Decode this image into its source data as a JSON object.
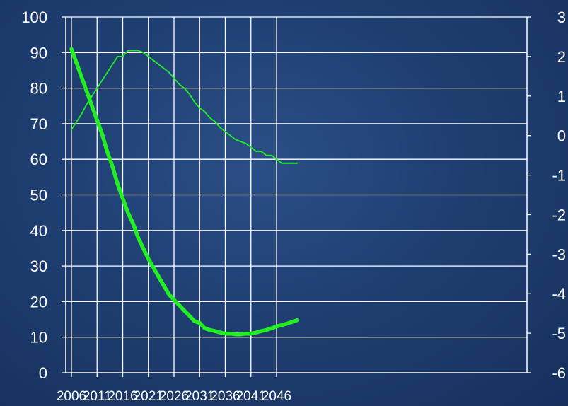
{
  "chart_data": {
    "type": "line",
    "grid": true,
    "colors": {
      "background": "#1f3f72",
      "grid": "#ffffff",
      "axis": "#ffffff",
      "text": "#ffffff",
      "series": "#22ee22"
    },
    "left_axis": {
      "ylim": [
        0,
        100
      ],
      "ticks": [
        "0",
        "10",
        "20",
        "30",
        "40",
        "50",
        "60",
        "70",
        "80",
        "90",
        "100"
      ]
    },
    "right_axis": {
      "ylim": [
        -6,
        3
      ],
      "ticks": [
        "-6",
        "-5",
        "-4",
        "-3",
        "-2",
        "-1",
        "0",
        "1",
        "2",
        "3"
      ]
    },
    "x_ticks": [
      "2006",
      "2011",
      "2016",
      "2021",
      "2026",
      "2031",
      "2036",
      "2041",
      "2046"
    ],
    "x_range": [
      2006,
      2050
    ],
    "series": [
      {
        "axis": "left",
        "style": "thick",
        "x": [
          2006,
          2007,
          2008,
          2009,
          2010,
          2011,
          2012,
          2013,
          2014,
          2015,
          2016,
          2017,
          2018,
          2019,
          2020,
          2021,
          2022,
          2023,
          2024,
          2025,
          2026,
          2027,
          2028,
          2029,
          2030,
          2031,
          2032,
          2033,
          2034,
          2035,
          2036,
          2037,
          2038,
          2039,
          2040,
          2041,
          2042,
          2043,
          2044,
          2045,
          2046,
          2047,
          2048,
          2049,
          2050
        ],
        "values": [
          91,
          87,
          83,
          79,
          75,
          71,
          67,
          62,
          58,
          53,
          49,
          45,
          42,
          38,
          35,
          32,
          29.5,
          27,
          24.5,
          22,
          20.5,
          19,
          17.5,
          16,
          14.5,
          14,
          12.5,
          12,
          11.7,
          11.3,
          11,
          11,
          10.8,
          10.8,
          11,
          11,
          11.3,
          11.7,
          12,
          12.5,
          13,
          13.4,
          13.8,
          14.3,
          14.8
        ]
      },
      {
        "axis": "right",
        "style": "thin",
        "x": [
          2006,
          2007,
          2008,
          2009,
          2010,
          2011,
          2012,
          2013,
          2014,
          2015,
          2016,
          2017,
          2018,
          2019,
          2020,
          2021,
          2022,
          2023,
          2024,
          2025,
          2026,
          2027,
          2028,
          2029,
          2030,
          2031,
          2032,
          2033,
          2034,
          2035,
          2036,
          2037,
          2038,
          2039,
          2040,
          2041,
          2042,
          2043,
          2044,
          2045,
          2046,
          2047,
          2048,
          2049,
          2050
        ],
        "values": [
          0.15,
          0.35,
          0.55,
          0.8,
          1.0,
          1.2,
          1.4,
          1.6,
          1.8,
          2.0,
          2.0,
          2.15,
          2.15,
          2.15,
          2.1,
          2.0,
          1.9,
          1.8,
          1.7,
          1.6,
          1.45,
          1.3,
          1.2,
          1.05,
          0.85,
          0.7,
          0.6,
          0.45,
          0.35,
          0.2,
          0.1,
          0.0,
          -0.1,
          -0.15,
          -0.2,
          -0.3,
          -0.4,
          -0.4,
          -0.5,
          -0.5,
          -0.6,
          -0.7,
          -0.7,
          -0.7,
          -0.7
        ]
      }
    ]
  }
}
